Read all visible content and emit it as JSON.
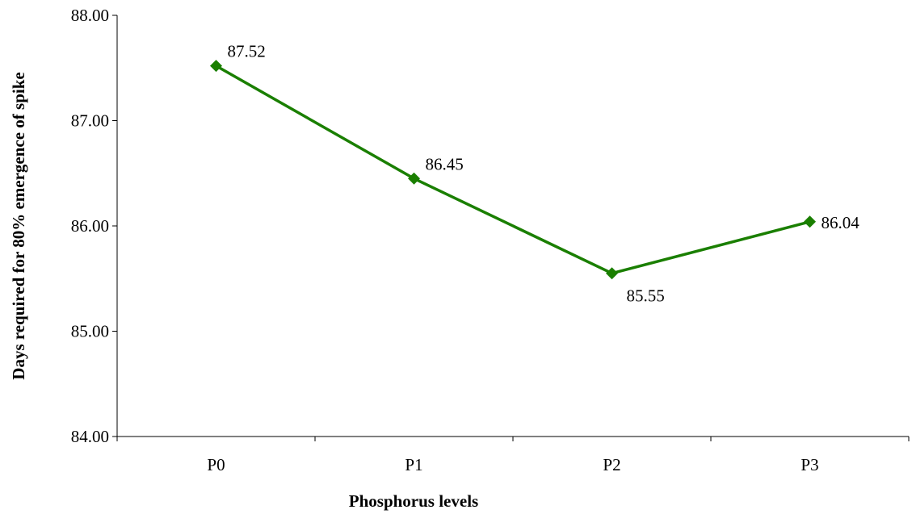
{
  "chart_data": {
    "type": "line",
    "categories": [
      "P0",
      "P1",
      "P2",
      "P3"
    ],
    "series": [
      {
        "values": [
          87.52,
          86.45,
          85.55,
          86.04
        ],
        "color": "#1a7f00",
        "marker": "diamond"
      }
    ],
    "data_labels": [
      "87.52",
      "86.45",
      "85.55",
      "86.04"
    ],
    "y_ticks": [
      "84.00",
      "85.00",
      "86.00",
      "87.00",
      "88.00"
    ],
    "xlabel": "Phosphorus levels",
    "ylabel": "Days required for 80% emergence of spike",
    "ylim": [
      84,
      88
    ],
    "grid": false,
    "legend": "none"
  }
}
